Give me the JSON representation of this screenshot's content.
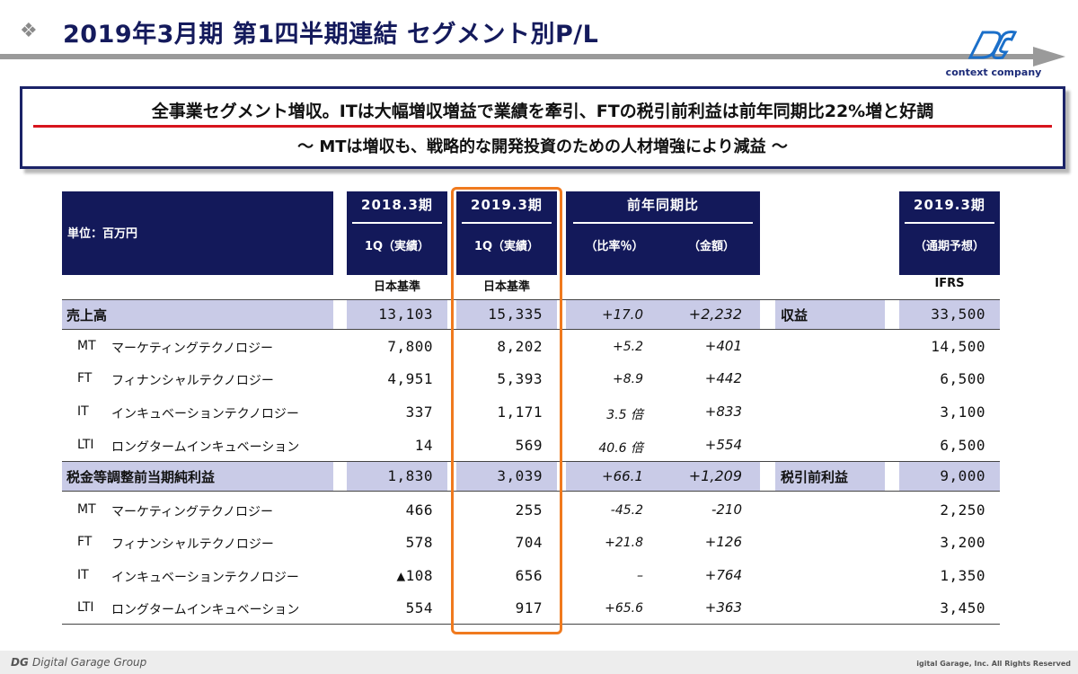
{
  "title": "2019年3月期 第1四半期連結 セグメント別P/L",
  "logo": {
    "text": "context company"
  },
  "headline": {
    "line1": "全事業セグメント増収。ITは大幅増収増益で業績を牽引、FTの税引前利益は前年同期比22%増と好調",
    "line2": "～ MTは増収も、戦略的な開発投資のための人材増強により減益 ～"
  },
  "table": {
    "unit": "単位：百万円",
    "col_2018": {
      "period": "2018.3期",
      "sub": "1Q（実績）",
      "standard": "日本基準"
    },
    "col_2019": {
      "period": "2019.3期",
      "sub": "1Q（実績）",
      "standard": "日本基準"
    },
    "col_yoy": {
      "period": "前年同期比",
      "sub_ratio": "（比率％）",
      "sub_amount": "（金額）"
    },
    "col_forecast": {
      "period": "2019.3期",
      "sub": "（通期予想）",
      "standard": "IFRS"
    },
    "rows": [
      {
        "code": "",
        "name": "売上高",
        "v2018": "13,103",
        "v2019": "15,335",
        "ratio": "+17.0",
        "amount": "+2,232",
        "ifrs_label": "収益",
        "forecast": "33,500",
        "total": true
      },
      {
        "code": "MT",
        "name": "マーケティングテクノロジー",
        "v2018": "7,800",
        "v2019": "8,202",
        "ratio": "+5.2",
        "amount": "+401",
        "ifrs_label": "",
        "forecast": "14,500",
        "total": false
      },
      {
        "code": "FT",
        "name": "フィナンシャルテクノロジー",
        "v2018": "4,951",
        "v2019": "5,393",
        "ratio": "+8.9",
        "amount": "+442",
        "ifrs_label": "",
        "forecast": "6,500",
        "total": false
      },
      {
        "code": "IT",
        "name": "インキュベーションテクノロジー",
        "v2018": "337",
        "v2019": "1,171",
        "ratio": "3.5 倍",
        "amount": "+833",
        "ifrs_label": "",
        "forecast": "3,100",
        "total": false
      },
      {
        "code": "LTI",
        "name": "ロングタームインキュベーション",
        "v2018": "14",
        "v2019": "569",
        "ratio": "40.6 倍",
        "amount": "+554",
        "ifrs_label": "",
        "forecast": "6,500",
        "total": false
      },
      {
        "code": "",
        "name": "税金等調整前当期純利益",
        "v2018": "1,830",
        "v2019": "3,039",
        "ratio": "+66.1",
        "amount": "+1,209",
        "ifrs_label": "税引前利益",
        "forecast": "9,000",
        "total": true
      },
      {
        "code": "MT",
        "name": "マーケティングテクノロジー",
        "v2018": "466",
        "v2019": "255",
        "ratio": "-45.2",
        "amount": "-210",
        "ifrs_label": "",
        "forecast": "2,250",
        "total": false
      },
      {
        "code": "FT",
        "name": "フィナンシャルテクノロジー",
        "v2018": "578",
        "v2019": "704",
        "ratio": "+21.8",
        "amount": "+126",
        "ifrs_label": "",
        "forecast": "3,200",
        "total": false
      },
      {
        "code": "IT",
        "name": "インキュベーションテクノロジー",
        "v2018": "▲108",
        "v2019": "656",
        "ratio": "–",
        "amount": "+764",
        "ifrs_label": "",
        "forecast": "1,350",
        "total": false
      },
      {
        "code": "LTI",
        "name": "ロングタームインキュベーション",
        "v2018": "554",
        "v2019": "917",
        "ratio": "+65.6",
        "amount": "+363",
        "ifrs_label": "",
        "forecast": "3,450",
        "total": false
      }
    ]
  },
  "footer": {
    "brand": "Digital Garage Group",
    "copyright": "igital Garage, Inc. All Rights Reserved"
  },
  "colors": {
    "navy": "#13195a",
    "band": "#c9cbe7",
    "accent_red": "#d7141d",
    "highlight_orange": "#f07a1e"
  }
}
